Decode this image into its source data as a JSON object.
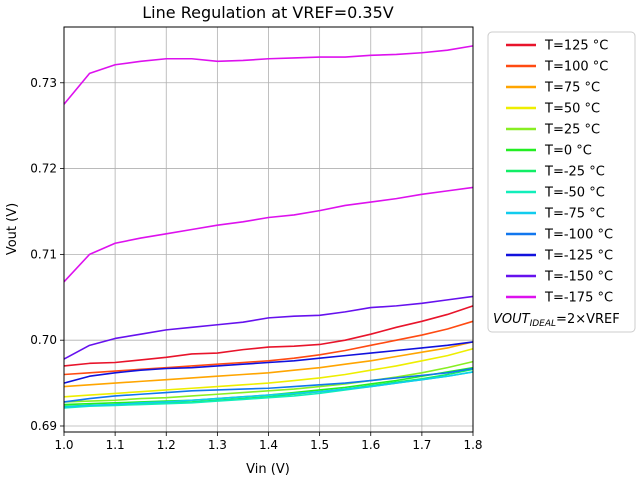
{
  "chart_data": {
    "type": "line",
    "title": "Line Regulation at VREF=0.35V",
    "xlabel": "Vin (V)",
    "ylabel": "Vout (V)",
    "xlim": [
      1.0,
      1.8
    ],
    "ylim": [
      0.6893,
      0.7365
    ],
    "xticks": [
      1.0,
      1.1,
      1.2,
      1.3,
      1.4,
      1.5,
      1.6,
      1.7,
      1.8
    ],
    "xtick_labels": [
      "1.0",
      "1.1",
      "1.2",
      "1.3",
      "1.4",
      "1.5",
      "1.6",
      "1.7",
      "1.8"
    ],
    "yticks": [
      0.69,
      0.7,
      0.71,
      0.72,
      0.73
    ],
    "ytick_labels": [
      "0.69",
      "0.70",
      "0.71",
      "0.72",
      "0.73"
    ],
    "grid": true,
    "legend_position": "outside-right",
    "legend_note_html": "VOUT<tspan font-size=\"9\" baseline-shift=\"sub\">IDEAL</tspan>=2×VREF",
    "legend_note_text": "VOUT_IDEAL=2×VREF",
    "x": [
      1.0,
      1.05,
      1.1,
      1.15,
      1.2,
      1.25,
      1.3,
      1.35,
      1.4,
      1.45,
      1.5,
      1.55,
      1.6,
      1.65,
      1.7,
      1.75,
      1.8
    ],
    "series": [
      {
        "name": "T=125 °C",
        "color": "#e8142b",
        "values": [
          0.697,
          0.6973,
          0.6974,
          0.6977,
          0.698,
          0.6984,
          0.6985,
          0.6989,
          0.6992,
          0.6993,
          0.6995,
          0.7,
          0.7007,
          0.7015,
          0.7022,
          0.703,
          0.704
        ]
      },
      {
        "name": "T=100 °C",
        "color": "#ff4a12",
        "values": [
          0.696,
          0.6962,
          0.6964,
          0.6966,
          0.6968,
          0.697,
          0.6972,
          0.6974,
          0.6976,
          0.6979,
          0.6983,
          0.6988,
          0.6994,
          0.7,
          0.7006,
          0.7013,
          0.7022
        ]
      },
      {
        "name": "T=75 °C",
        "color": "#ffa500",
        "values": [
          0.6946,
          0.6948,
          0.695,
          0.6952,
          0.6954,
          0.6956,
          0.6958,
          0.696,
          0.6962,
          0.6965,
          0.6968,
          0.6972,
          0.6976,
          0.6981,
          0.6986,
          0.6991,
          0.6998
        ]
      },
      {
        "name": "T=50 °C",
        "color": "#eeee00",
        "values": [
          0.6934,
          0.6936,
          0.6938,
          0.694,
          0.6942,
          0.6944,
          0.6946,
          0.6948,
          0.695,
          0.6953,
          0.6956,
          0.696,
          0.6965,
          0.697,
          0.6976,
          0.6982,
          0.699
        ]
      },
      {
        "name": "T=25 °C",
        "color": "#88ee22",
        "values": [
          0.6928,
          0.6929,
          0.693,
          0.6932,
          0.6933,
          0.6935,
          0.6937,
          0.6939,
          0.6941,
          0.6943,
          0.6946,
          0.6949,
          0.6953,
          0.6957,
          0.6962,
          0.6968,
          0.6975
        ]
      },
      {
        "name": "T=0 °C",
        "color": "#22ee22",
        "values": [
          0.6925,
          0.6926,
          0.6927,
          0.6928,
          0.6929,
          0.693,
          0.6932,
          0.6934,
          0.6936,
          0.6939,
          0.6942,
          0.6945,
          0.6949,
          0.6953,
          0.6958,
          0.6963,
          0.6968
        ]
      },
      {
        "name": "T=-25 °C",
        "color": "#11ee66",
        "values": [
          0.6923,
          0.6924,
          0.6925,
          0.6926,
          0.6927,
          0.6928,
          0.693,
          0.6932,
          0.6934,
          0.6937,
          0.694,
          0.6943,
          0.6947,
          0.6951,
          0.6955,
          0.696,
          0.6966
        ]
      },
      {
        "name": "T=-50 °C",
        "color": "#11eebb",
        "values": [
          0.6921,
          0.6923,
          0.6924,
          0.6925,
          0.6926,
          0.6927,
          0.6929,
          0.6931,
          0.6933,
          0.6935,
          0.6938,
          0.6942,
          0.6946,
          0.695,
          0.6954,
          0.6958,
          0.6963
        ]
      },
      {
        "name": "T=-75 °C",
        "color": "#11ccee",
        "values": [
          0.6922,
          0.6924,
          0.6925,
          0.6927,
          0.6928,
          0.693,
          0.6932,
          0.6934,
          0.6936,
          0.6938,
          0.694,
          0.6943,
          0.6946,
          0.695,
          0.6954,
          0.6958,
          0.6963
        ]
      },
      {
        "name": "T=-100 °C",
        "color": "#1177ee",
        "values": [
          0.6928,
          0.6932,
          0.6935,
          0.6937,
          0.6939,
          0.6941,
          0.6942,
          0.6943,
          0.6944,
          0.6946,
          0.6948,
          0.695,
          0.6953,
          0.6956,
          0.6959,
          0.6962,
          0.6967
        ]
      },
      {
        "name": "T=-125 °C",
        "color": "#1111dd",
        "values": [
          0.695,
          0.6958,
          0.6962,
          0.6965,
          0.6967,
          0.6968,
          0.697,
          0.6972,
          0.6974,
          0.6976,
          0.6979,
          0.6982,
          0.6985,
          0.6988,
          0.6991,
          0.6994,
          0.6998
        ]
      },
      {
        "name": "T=-150 °C",
        "color": "#6611ee",
        "values": [
          0.6978,
          0.6994,
          0.7002,
          0.7007,
          0.7012,
          0.7015,
          0.7018,
          0.7021,
          0.7026,
          0.7028,
          0.7029,
          0.7033,
          0.7038,
          0.704,
          0.7043,
          0.7047,
          0.7051
        ]
      },
      {
        "name": "T=-175 °C",
        "color": "#dd11ee",
        "values": [
          0.7068,
          0.71,
          0.7113,
          0.7119,
          0.7124,
          0.7129,
          0.7134,
          0.7138,
          0.7143,
          0.7146,
          0.7151,
          0.7157,
          0.7161,
          0.7165,
          0.717,
          0.7174,
          0.7178
        ]
      },
      {
        "name": "",
        "color": "#dd11ee",
        "values": [
          0.7275,
          0.7311,
          0.7321,
          0.7325,
          0.7328,
          0.7328,
          0.7325,
          0.7326,
          0.7328,
          0.7329,
          0.733,
          0.733,
          0.7332,
          0.7333,
          0.7335,
          0.7338,
          0.7343
        ]
      }
    ]
  }
}
